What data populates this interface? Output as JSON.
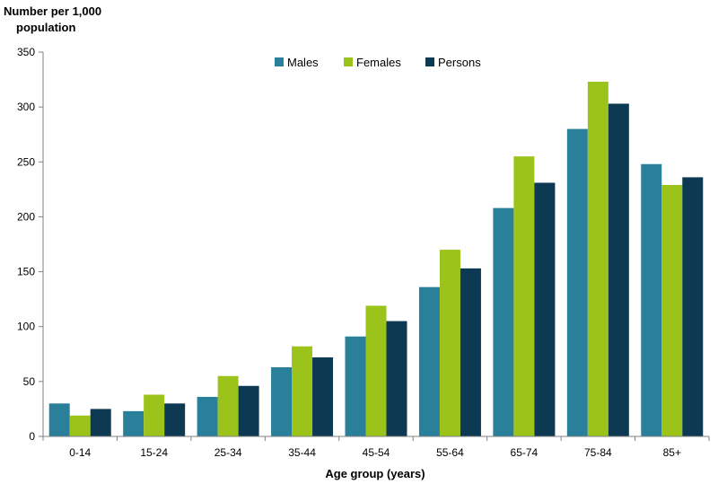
{
  "chart_data": {
    "type": "bar",
    "ylabel_line1": "Number per 1,000",
    "ylabel_line2": "population",
    "xlabel": "Age group (years)",
    "categories": [
      "0-14",
      "15-24",
      "25-34",
      "35-44",
      "45-54",
      "55-64",
      "65-74",
      "75-84",
      "85+"
    ],
    "ylim": [
      0,
      350
    ],
    "yticks": [
      0,
      50,
      100,
      150,
      200,
      250,
      300,
      350
    ],
    "legend_position": "top-center",
    "grid": false,
    "series": [
      {
        "name": "Males",
        "color": "#2a7f9a",
        "values": [
          30,
          23,
          36,
          63,
          91,
          136,
          208,
          280,
          248
        ]
      },
      {
        "name": "Females",
        "color": "#9bc31a",
        "values": [
          19,
          38,
          55,
          82,
          119,
          170,
          255,
          323,
          229
        ]
      },
      {
        "name": "Persons",
        "color": "#0d3a52",
        "values": [
          25,
          30,
          46,
          72,
          105,
          153,
          231,
          303,
          236
        ]
      }
    ]
  }
}
